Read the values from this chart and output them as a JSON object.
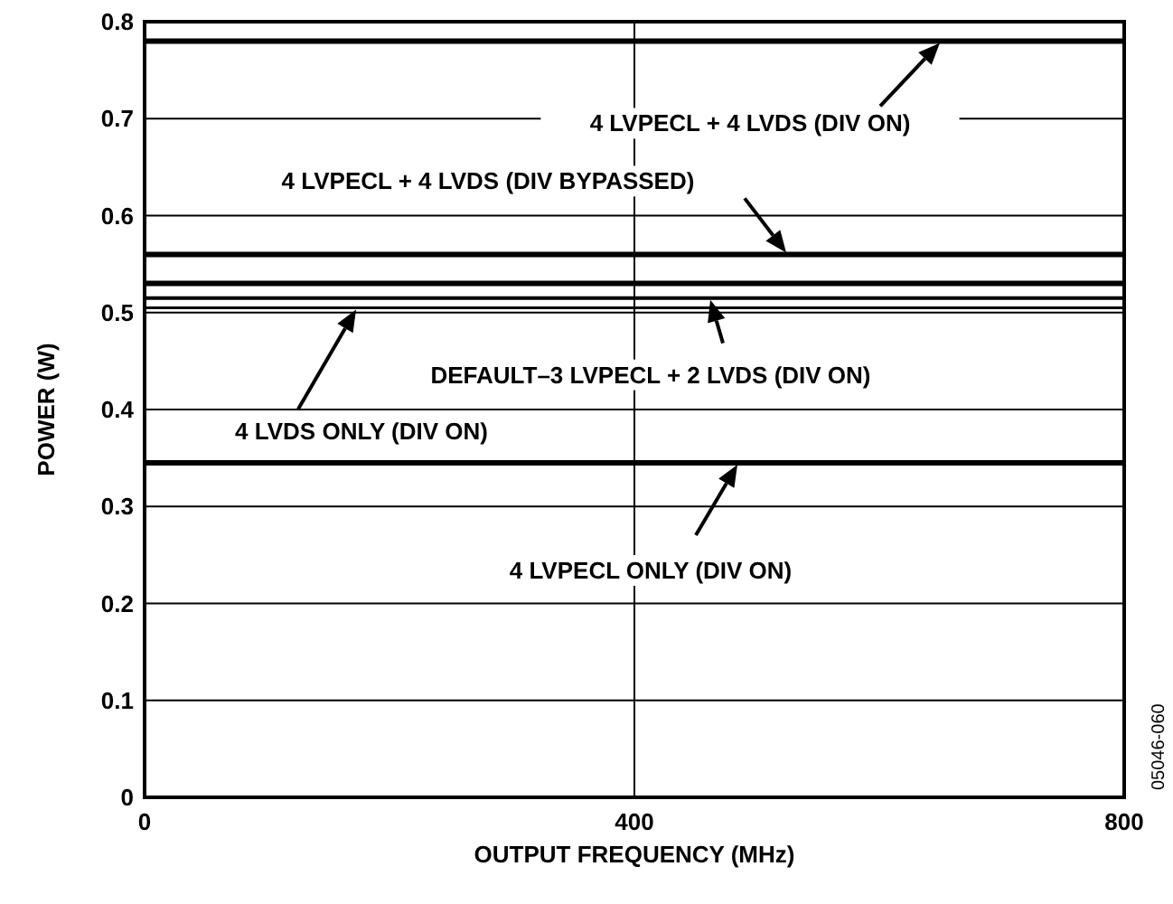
{
  "chart_data": {
    "type": "line",
    "xlabel": "OUTPUT FREQUENCY (MHz)",
    "ylabel": "POWER (W)",
    "xlim": [
      0,
      800
    ],
    "xticks": [
      0,
      400,
      800
    ],
    "ylim": [
      0,
      0.8
    ],
    "yticks": [
      0,
      0.1,
      0.2,
      0.3,
      0.4,
      0.5,
      0.6,
      0.7,
      0.8
    ],
    "grid": true,
    "marker": "none",
    "line_style": "solid",
    "x": [
      0,
      800
    ],
    "annotations": [
      "4 LVPECL + 4 LVDS (DIV ON)",
      "4 LVPECL + 4 LVDS (DIV BYPASSED)",
      "DEFAULT–3 LVPECL + 2 LVDS (DIV ON)",
      "4 LVDS ONLY (DIV ON)",
      "4 LVPECL ONLY (DIV ON)",
      "05046-060"
    ],
    "series": [
      {
        "color": "#000000",
        "values": [
          0.78,
          0.78
        ]
      },
      {
        "color": "#000000",
        "values": [
          0.56,
          0.56
        ]
      },
      {
        "color": "#000000",
        "values": [
          0.53,
          0.53
        ]
      },
      {
        "color": "#000000",
        "values": [
          0.515,
          0.515
        ]
      },
      {
        "color": "#000000",
        "values": [
          0.505,
          0.505
        ]
      },
      {
        "color": "#000000",
        "values": [
          0.345,
          0.345
        ]
      }
    ]
  }
}
